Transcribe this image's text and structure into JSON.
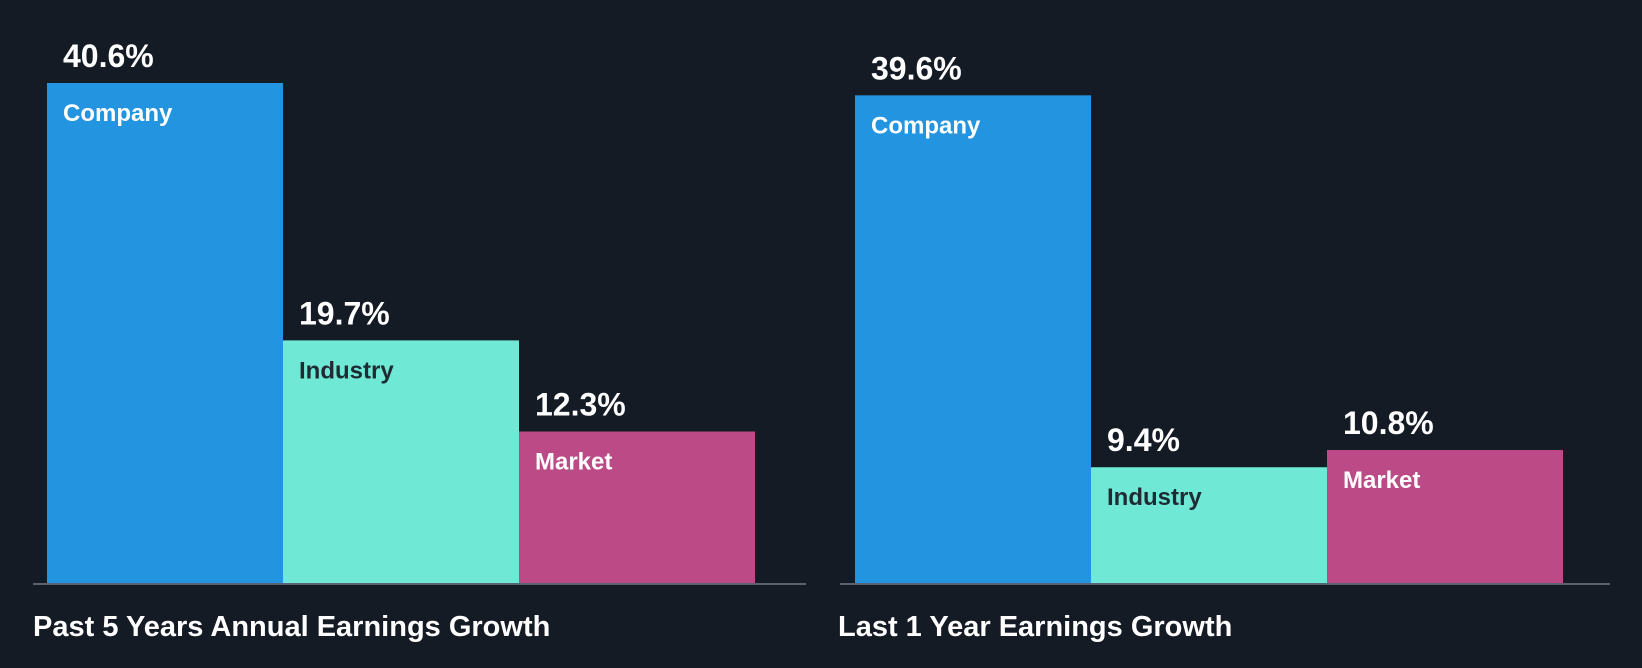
{
  "chart_data": [
    {
      "type": "bar",
      "title": "Past 5 Years Annual Earnings Growth",
      "categories": [
        "Company",
        "Industry",
        "Market"
      ],
      "values": [
        40.6,
        19.7,
        12.3
      ],
      "value_labels": [
        "40.6%",
        "19.7%",
        "12.3%"
      ],
      "colors": [
        "#2394e0",
        "#6fe8d6",
        "#bb4a86"
      ],
      "label_colors": [
        "#ffffff",
        "#1f2b33",
        "#ffffff"
      ],
      "unit": "%",
      "xlabel": "",
      "ylabel": "",
      "ylim": [
        0,
        40.6
      ],
      "grid": false,
      "legend": "none"
    },
    {
      "type": "bar",
      "title": "Last 1 Year Earnings Growth",
      "categories": [
        "Company",
        "Industry",
        "Market"
      ],
      "values": [
        39.6,
        9.4,
        10.8
      ],
      "value_labels": [
        "39.6%",
        "9.4%",
        "10.8%"
      ],
      "colors": [
        "#2394e0",
        "#6fe8d6",
        "#bb4a86"
      ],
      "label_colors": [
        "#ffffff",
        "#1f2b33",
        "#ffffff"
      ],
      "unit": "%",
      "xlabel": "",
      "ylabel": "",
      "ylim": [
        0,
        40.6
      ],
      "grid": false,
      "legend": "none"
    }
  ],
  "theme": {
    "background": "#151b24",
    "axis_color": "#5a6170"
  }
}
